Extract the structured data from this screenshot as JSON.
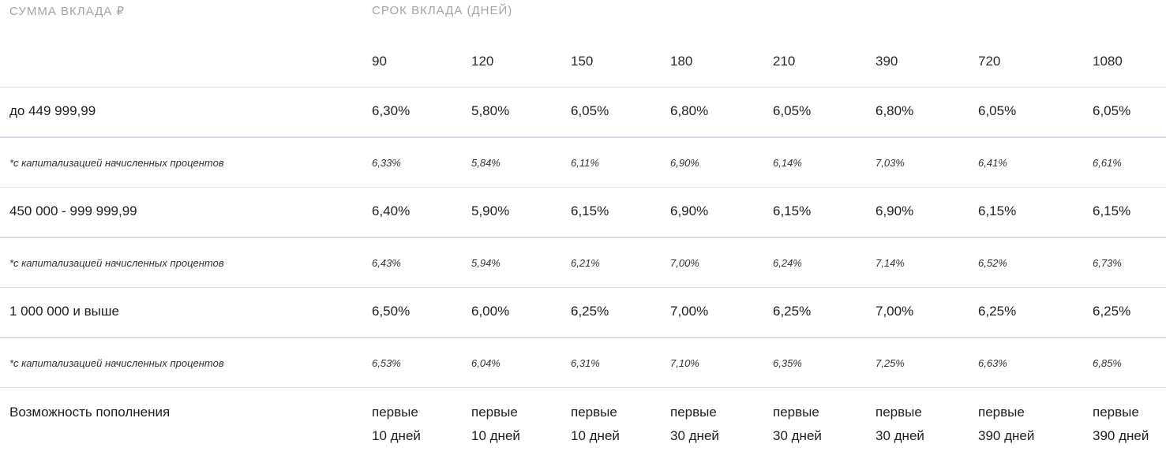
{
  "header": {
    "amount_caption": "СУММА ВКЛАДА ₽",
    "term_caption": "СРОК ВКЛАДА (ДНЕЙ)",
    "terms": [
      "90",
      "120",
      "150",
      "180",
      "210",
      "390",
      "720",
      "1080"
    ]
  },
  "rows": [
    {
      "label": "до 449 999,99",
      "rates": [
        "6,30%",
        "5,80%",
        "6,05%",
        "6,80%",
        "6,05%",
        "6,80%",
        "6,05%",
        "6,05%"
      ],
      "cap_label": "*с капитализацией начисленных процентов",
      "cap_rates": [
        "6,33%",
        "5,84%",
        "6,11%",
        "6,90%",
        "6,14%",
        "7,03%",
        "6,41%",
        "6,61%"
      ]
    },
    {
      "label": "450 000 - 999 999,99",
      "rates": [
        "6,40%",
        "5,90%",
        "6,15%",
        "6,90%",
        "6,15%",
        "6,90%",
        "6,15%",
        "6,15%"
      ],
      "cap_label": "*с капитализацией начисленных процентов",
      "cap_rates": [
        "6,43%",
        "5,94%",
        "6,21%",
        "7,00%",
        "6,24%",
        "7,14%",
        "6,52%",
        "6,73%"
      ]
    },
    {
      "label": "1 000 000 и выше",
      "rates": [
        "6,50%",
        "6,00%",
        "6,25%",
        "7,00%",
        "6,25%",
        "7,00%",
        "6,25%",
        "6,25%"
      ],
      "cap_label": "*с капитализацией начисленных процентов",
      "cap_rates": [
        "6,53%",
        "6,04%",
        "6,31%",
        "7,10%",
        "6,35%",
        "7,25%",
        "6,63%",
        "6,85%"
      ]
    }
  ],
  "topup": {
    "label": "Возможность пополнения",
    "values": [
      [
        "первые",
        "10 дней"
      ],
      [
        "первые",
        "10 дней"
      ],
      [
        "первые",
        "10 дней"
      ],
      [
        "первые",
        "30 дней"
      ],
      [
        "первые",
        "30 дней"
      ],
      [
        "первые",
        "30 дней"
      ],
      [
        "первые",
        "390 дней"
      ],
      [
        "первые",
        "390 дней"
      ]
    ]
  }
}
